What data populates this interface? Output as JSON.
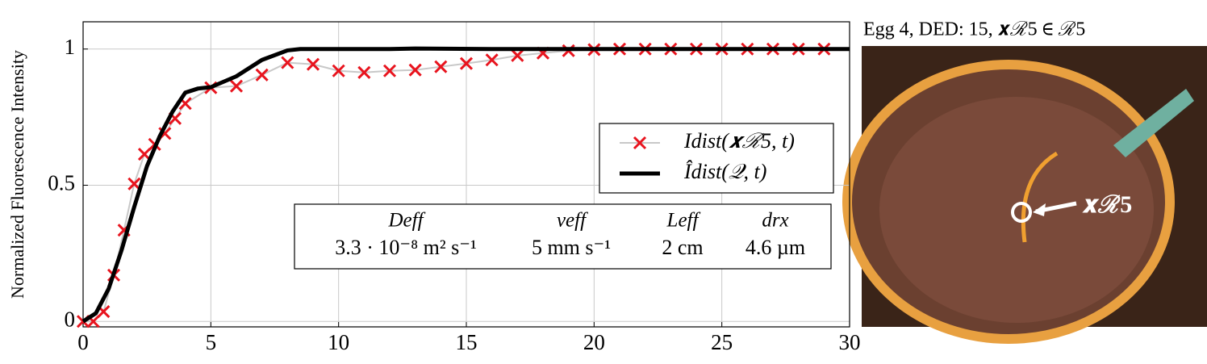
{
  "chart_data": {
    "type": "line",
    "ylabel": "Normalized Fluorescence Intensity",
    "xlim": [
      0,
      30
    ],
    "ylim": [
      -0.02,
      1.1
    ],
    "xticks": [
      0,
      5,
      10,
      15,
      20,
      25,
      30
    ],
    "yticks": [
      0,
      0.5,
      1
    ],
    "grid": true,
    "legend": "right",
    "series": [
      {
        "name": "Idist(𝒙ℛ5, t)",
        "color": "#e8141e",
        "line_color": "#c8c8c8",
        "marker": "x",
        "x": [
          0,
          0.4,
          0.8,
          1.2,
          1.6,
          2.0,
          2.4,
          2.8,
          3.2,
          3.6,
          4.0,
          5,
          6,
          7,
          8,
          9,
          10,
          11,
          12,
          13,
          14,
          15,
          16,
          17,
          18,
          19,
          20,
          21,
          22,
          23,
          24,
          25,
          26,
          27,
          28,
          29
        ],
        "values": [
          0,
          0,
          0.036,
          0.17,
          0.335,
          0.505,
          0.614,
          0.65,
          0.69,
          0.745,
          0.8,
          0.858,
          0.864,
          0.905,
          0.95,
          0.944,
          0.92,
          0.914,
          0.92,
          0.923,
          0.935,
          0.947,
          0.96,
          0.976,
          0.985,
          0.994,
          0.998,
          1,
          1,
          1,
          1,
          1,
          1,
          1,
          1,
          1
        ]
      },
      {
        "name": "Îdist(𝒬, t)",
        "color": "#000000",
        "marker": "none",
        "x": [
          0,
          0.5,
          1,
          1.5,
          2,
          2.5,
          3,
          3.5,
          4,
          4.5,
          5,
          6,
          7,
          8,
          8.5,
          9,
          12,
          13,
          16,
          30
        ],
        "values": [
          0,
          0.03,
          0.12,
          0.26,
          0.42,
          0.57,
          0.68,
          0.77,
          0.84,
          0.855,
          0.86,
          0.9,
          0.96,
          0.995,
          1,
          1,
          1,
          1.002,
          1,
          1
        ]
      }
    ],
    "parameter_table": {
      "headers": [
        "Deff",
        "veff",
        "Leff",
        "drx"
      ],
      "values": [
        "3.3 · 10⁻⁸ m² s⁻¹",
        "5 mm s⁻¹",
        "2 cm",
        "4.6 µm"
      ]
    },
    "image": {
      "title": "Egg 4, DED: 15, 𝒙ℛ5 ∈ ℛ5",
      "marker_label": "𝒙ℛ5"
    }
  }
}
